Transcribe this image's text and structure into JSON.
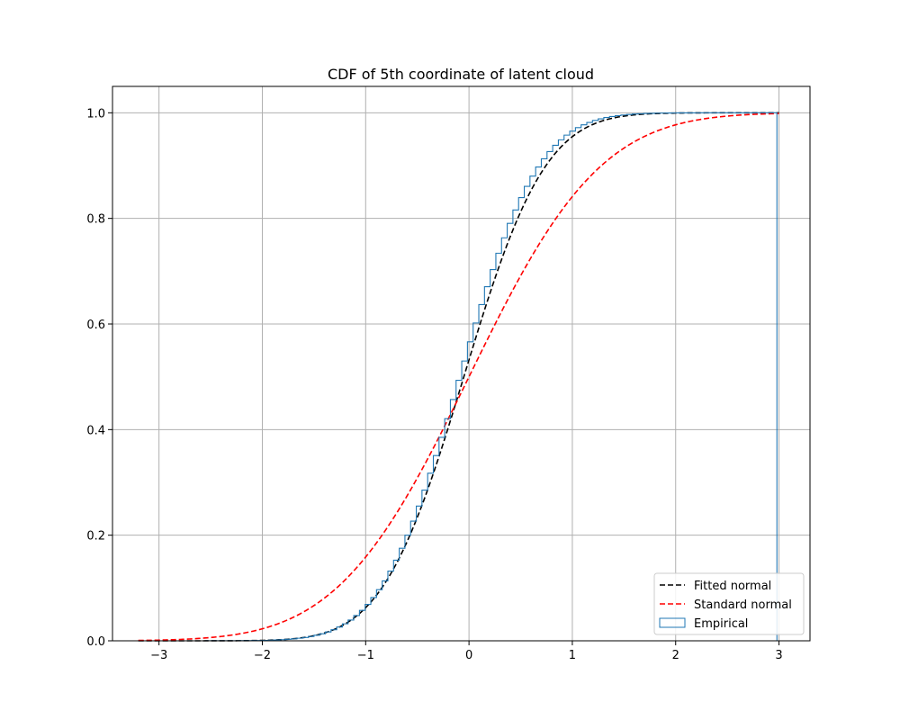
{
  "chart_data": {
    "type": "line",
    "title": "CDF of 5th coordinate of latent cloud",
    "xlabel": "",
    "ylabel": "",
    "xlim": [
      -3.45,
      3.3
    ],
    "ylim": [
      0.0,
      1.05
    ],
    "xticks": [
      -3,
      -2,
      -1,
      0,
      1,
      2,
      3
    ],
    "yticks": [
      0.0,
      0.2,
      0.4,
      0.6,
      0.8,
      1.0
    ],
    "xtick_labels": [
      "−3",
      "−2",
      "−1",
      "0",
      "1",
      "2",
      "3"
    ],
    "ytick_labels": [
      "0.0",
      "0.2",
      "0.4",
      "0.6",
      "0.8",
      "1.0"
    ],
    "grid": true,
    "legend_position": "bottom-right",
    "series": [
      {
        "name": "Fitted normal",
        "kind": "normal-cdf",
        "color": "#000000",
        "dash": true,
        "mean": -0.05,
        "std": 0.62,
        "x_range": [
          -3.2,
          3.0
        ]
      },
      {
        "name": "Standard normal",
        "kind": "normal-cdf",
        "color": "#ff0000",
        "dash": true,
        "mean": 0.0,
        "std": 1.0,
        "x_range": [
          -3.2,
          3.0
        ]
      },
      {
        "name": "Empirical",
        "kind": "step",
        "color": "#1f77b4",
        "x_range": [
          -2.6,
          2.98
        ],
        "step_width": 0.055,
        "mean": -0.06,
        "std": 0.6
      }
    ]
  }
}
